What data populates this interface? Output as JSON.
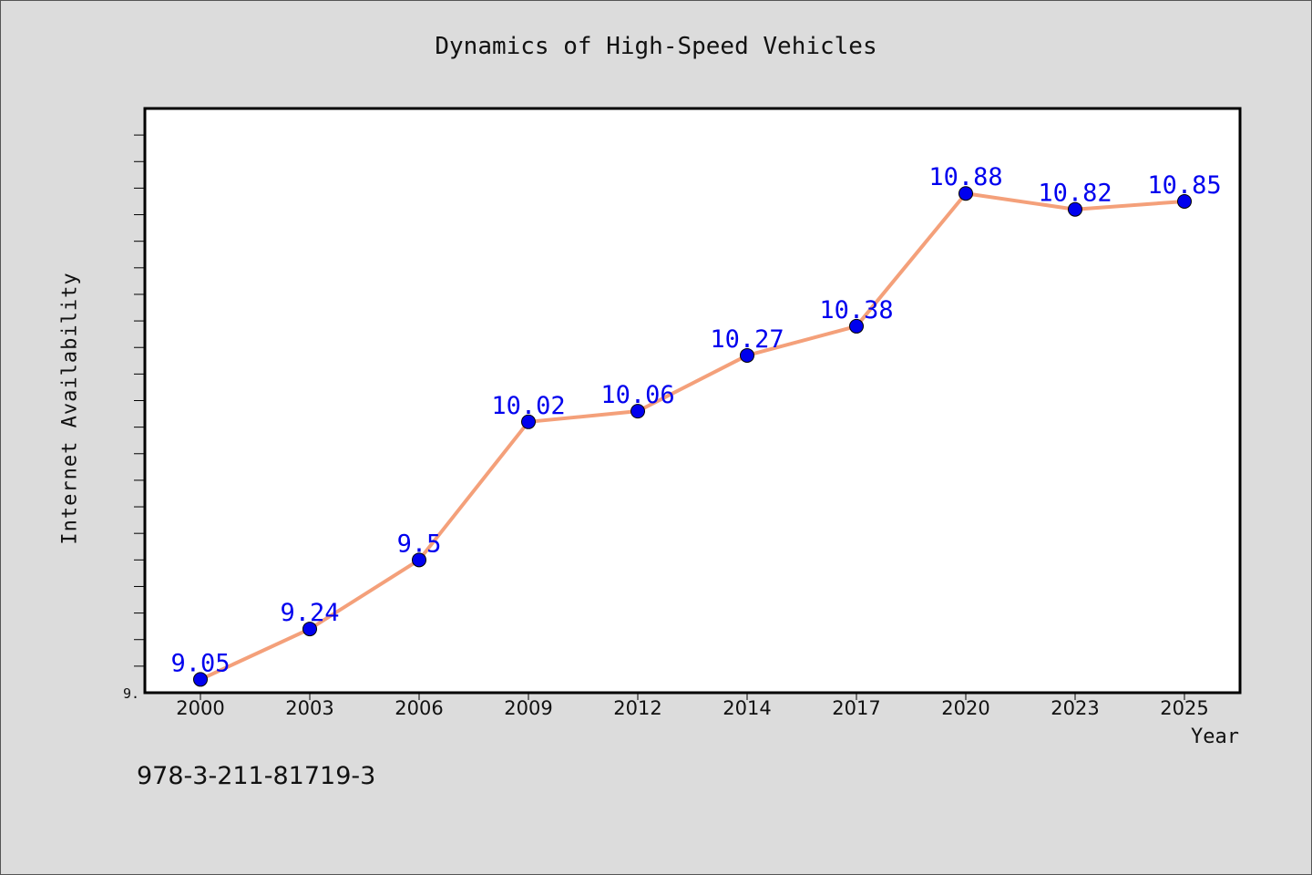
{
  "chart_data": {
    "type": "line",
    "title": "Dynamics of High-Speed Vehicles",
    "xlabel": "Year",
    "ylabel": "Internet Availability",
    "categories": [
      "2000",
      "2003",
      "2006",
      "2009",
      "2012",
      "2014",
      "2017",
      "2020",
      "2023",
      "2025"
    ],
    "series": [
      {
        "values": [
          9.05,
          9.24,
          9.5,
          10.02,
          10.06,
          10.27,
          10.38,
          10.88,
          10.82,
          10.85
        ],
        "data_labels": [
          "9.05",
          "9.24",
          "9.5",
          "10.02",
          "10.06",
          "10.27",
          "10.38",
          "10.88",
          "10.82",
          "10.85"
        ]
      }
    ],
    "y_tick_label": "9.",
    "ylim": [
      9.0,
      11.2
    ],
    "y_minor_tick_step": 0.1,
    "grid": false,
    "line_color": "#f4a07a",
    "marker_color": "#0000ee",
    "label_color": "#0000ee"
  },
  "footer_text": "978-3-211-81719-3"
}
